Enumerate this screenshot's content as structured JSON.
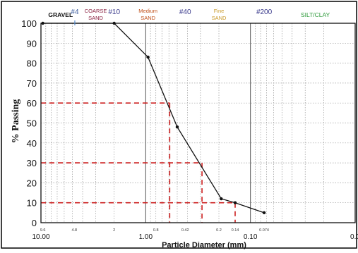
{
  "chart_data": {
    "type": "line",
    "title": "",
    "xlabel": "Particle Diameter (mm)",
    "ylabel": "% Passing",
    "x_scale": "log",
    "x_reversed": true,
    "xlim": [
      10,
      0.01
    ],
    "ylim": [
      0,
      100
    ],
    "grid": true,
    "y_ticks": [
      0,
      10,
      20,
      30,
      40,
      50,
      60,
      70,
      80,
      90,
      100
    ],
    "x_major_ticks": [
      {
        "value": 10,
        "label": "10.00"
      },
      {
        "value": 1,
        "label": "1.00"
      },
      {
        "value": 0.1,
        "label": "0.10"
      },
      {
        "value": 0.01,
        "label": "0.0"
      }
    ],
    "x_minor_labels": [
      {
        "value": 9.6,
        "label": "9.6"
      },
      {
        "value": 4.8,
        "label": "4.8"
      },
      {
        "value": 2,
        "label": "2"
      },
      {
        "value": 0.8,
        "label": "0.8"
      },
      {
        "value": 0.42,
        "label": "0.42"
      },
      {
        "value": 0.2,
        "label": "0.2"
      },
      {
        "value": 0.14,
        "label": "0.14"
      },
      {
        "value": 0.074,
        "label": "0.074"
      }
    ],
    "series": [
      {
        "color": "#111111",
        "points": [
          {
            "x": 9.6,
            "y": 100
          },
          {
            "x": 2.0,
            "y": 100
          },
          {
            "x": 0.95,
            "y": 83
          },
          {
            "x": 0.5,
            "y": 48
          },
          {
            "x": 0.19,
            "y": 12
          },
          {
            "x": 0.14,
            "y": 10
          },
          {
            "x": 0.074,
            "y": 5
          }
        ]
      }
    ],
    "reference_lines": [
      {
        "y": 60,
        "x": 0.59,
        "color": "#cc1f1f"
      },
      {
        "y": 30,
        "x": 0.29,
        "color": "#cc1f1f"
      },
      {
        "y": 10,
        "x": 0.14,
        "color": "#cc1f1f"
      }
    ],
    "size_classes": [
      {
        "lines": [
          "GRAVEL"
        ],
        "x": 6.5,
        "color": "#111111"
      },
      {
        "lines": [
          "#4"
        ],
        "x": 4.75,
        "color": "#3a5a9c"
      },
      {
        "lines": [
          "COARSE",
          "SAND"
        ],
        "x": 3.0,
        "color": "#8a2040"
      },
      {
        "lines": [
          "#10"
        ],
        "x": 2.0,
        "color": "#3a3a8c"
      },
      {
        "lines": [
          "Medium",
          "SAND"
        ],
        "x": 0.95,
        "color": "#c0501a"
      },
      {
        "lines": [
          "#40"
        ],
        "x": 0.42,
        "color": "#3a3a8c"
      },
      {
        "lines": [
          "Fine",
          "SAND"
        ],
        "x": 0.2,
        "color": "#c99a2a"
      },
      {
        "lines": [
          "#200"
        ],
        "x": 0.074,
        "color": "#3a3a8c"
      },
      {
        "lines": [
          "SILT/CLAY"
        ],
        "x": 0.024,
        "color": "#2e9a3a"
      }
    ],
    "sieve_marker": {
      "x": 4.75,
      "color": "#5a8fd0"
    }
  }
}
